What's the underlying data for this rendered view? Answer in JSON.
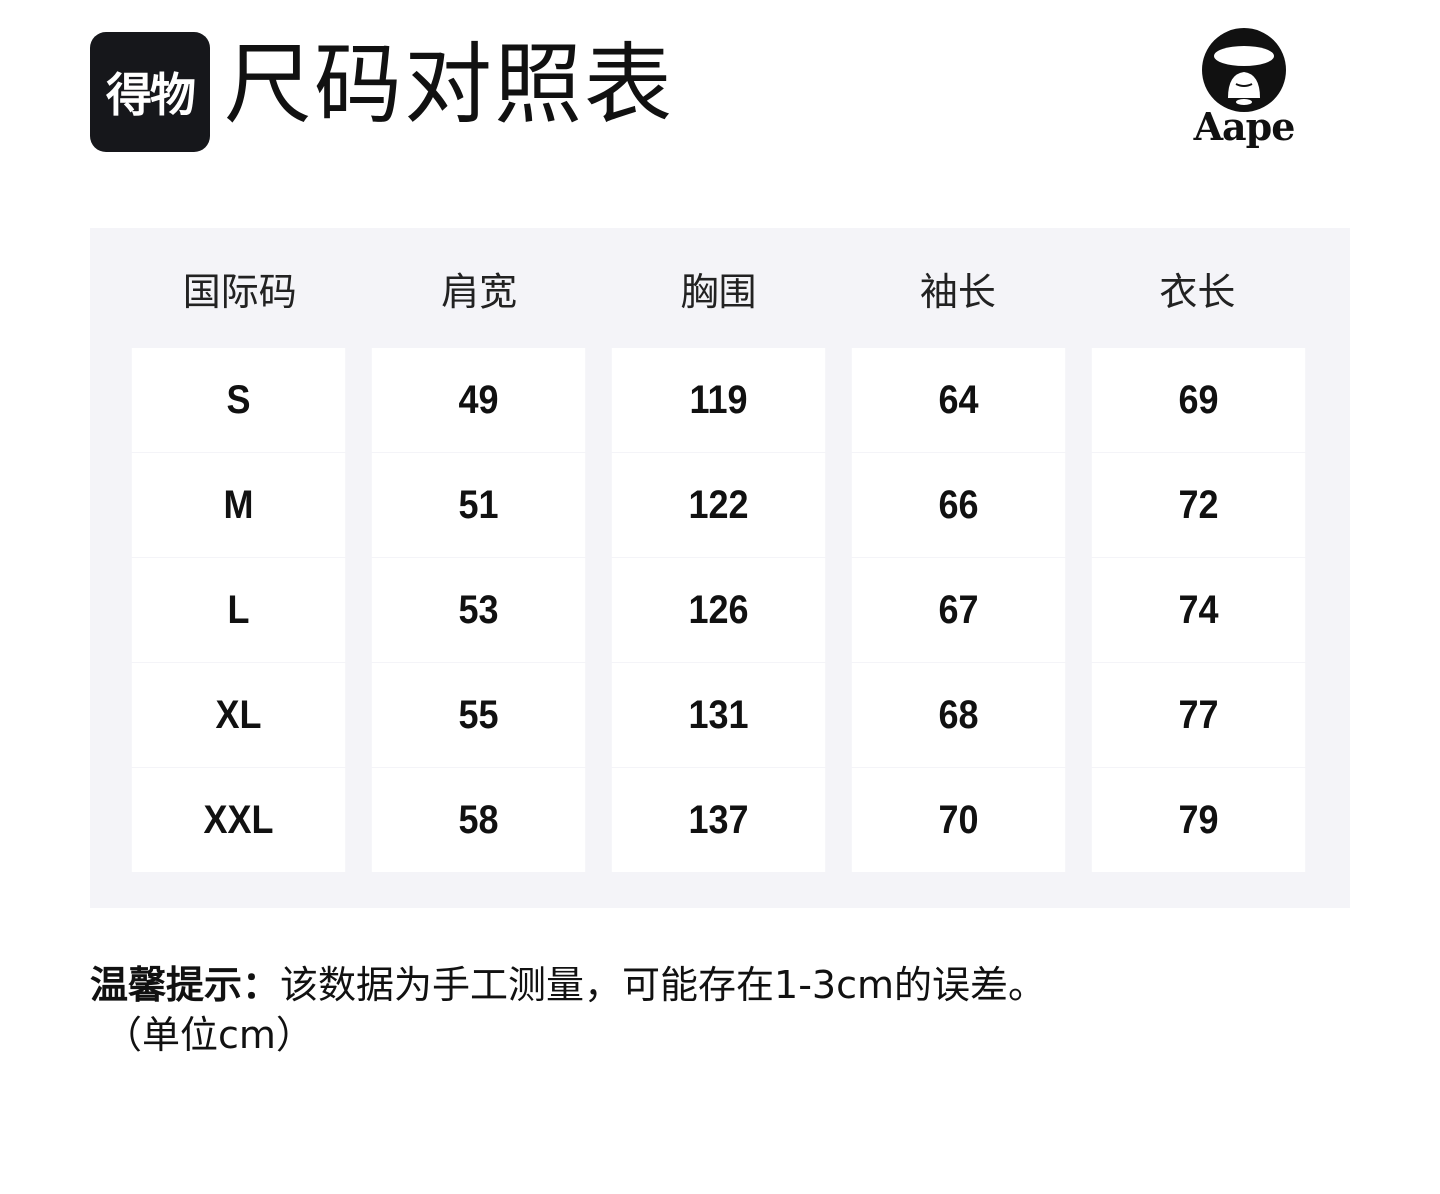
{
  "header": {
    "brand_logo": "得物",
    "title": "尺码对照表",
    "partner_logo": "Aape"
  },
  "table": {
    "columns": [
      "国际码",
      "肩宽",
      "胸围",
      "袖长",
      "衣长"
    ],
    "rows": [
      [
        "S",
        "49",
        "119",
        "64",
        "69"
      ],
      [
        "M",
        "51",
        "122",
        "66",
        "72"
      ],
      [
        "L",
        "53",
        "126",
        "67",
        "74"
      ],
      [
        "XL",
        "55",
        "131",
        "68",
        "77"
      ],
      [
        "XXL",
        "58",
        "137",
        "70",
        "79"
      ]
    ]
  },
  "note": {
    "label": "温馨提示：",
    "text": "该数据为手工测量，可能存在1-3cm的误差。",
    "unit": "（单位cm）"
  }
}
